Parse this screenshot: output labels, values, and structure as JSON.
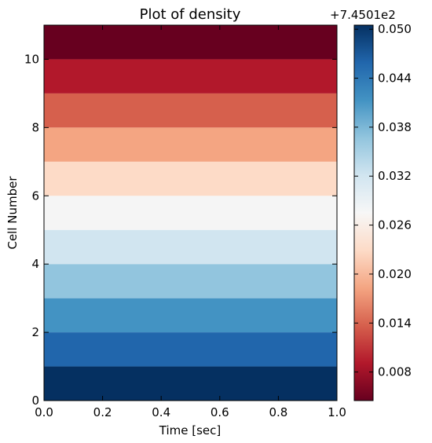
{
  "chart_data": {
    "type": "heatmap",
    "title": "Plot of density",
    "xlabel": "Time [sec]",
    "ylabel": "Cell Number",
    "xlim": [
      0.0,
      1.0
    ],
    "ylim": [
      0,
      11
    ],
    "x_ticks": [
      "0.0",
      "0.2",
      "0.4",
      "0.6",
      "0.8",
      "1.0"
    ],
    "y_ticks": [
      "0",
      "2",
      "4",
      "6",
      "8",
      "10"
    ],
    "cells": [
      {
        "cell": 0,
        "color": "#053061"
      },
      {
        "cell": 1,
        "color": "#2166ac"
      },
      {
        "cell": 2,
        "color": "#4393c3"
      },
      {
        "cell": 3,
        "color": "#92c5de"
      },
      {
        "cell": 4,
        "color": "#d1e5f0"
      },
      {
        "cell": 5,
        "color": "#f5f5f5"
      },
      {
        "cell": 6,
        "color": "#fddbc7"
      },
      {
        "cell": 7,
        "color": "#f4a582"
      },
      {
        "cell": 8,
        "color": "#d6604d"
      },
      {
        "cell": 9,
        "color": "#b2182b"
      },
      {
        "cell": 10,
        "color": "#67001f"
      }
    ],
    "colorbar": {
      "offset_label": "+7.4501e2",
      "tick_labels": [
        "0.008",
        "0.014",
        "0.020",
        "0.026",
        "0.032",
        "0.038",
        "0.044",
        "0.050"
      ],
      "tick_values": [
        0.008,
        0.014,
        0.02,
        0.026,
        0.032,
        0.038,
        0.044,
        0.05
      ],
      "range": [
        0.0045,
        0.0505
      ],
      "colormap": "RdBu",
      "colors": [
        "#67001f",
        "#b2182b",
        "#d6604d",
        "#f4a582",
        "#fddbc7",
        "#f7f7f7",
        "#d1e5f0",
        "#92c5de",
        "#4393c3",
        "#2166ac",
        "#053061"
      ]
    }
  }
}
